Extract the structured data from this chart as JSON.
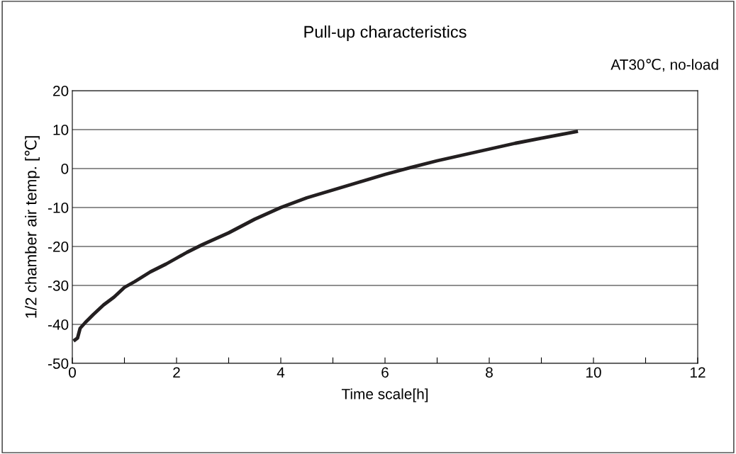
{
  "chart_data": {
    "type": "line",
    "title": "Pull-up characteristics",
    "xlabel": "Time scale[h]",
    "ylabel": "1/2 chamber air temp. [℃]",
    "annotations": [
      "AT30℃, no-load"
    ],
    "x": [
      0.05,
      0.1,
      0.15,
      0.25,
      0.4,
      0.6,
      0.8,
      1.0,
      1.2,
      1.5,
      1.8,
      2.0,
      2.2,
      2.5,
      3.0,
      3.5,
      4.0,
      4.5,
      5.0,
      5.5,
      6.0,
      6.5,
      7.0,
      7.5,
      8.0,
      8.5,
      9.0,
      9.67
    ],
    "series": [
      {
        "color": "#231f20",
        "values": [
          -44,
          -43.5,
          -41,
          -39.5,
          -37.5,
          -35,
          -33,
          -30.5,
          -29,
          -26.5,
          -24.5,
          -23,
          -21.5,
          -19.5,
          -16.5,
          -13,
          -10,
          -7.5,
          -5.5,
          -3.5,
          -1.5,
          0.3,
          2,
          3.5,
          5,
          6.5,
          7.8,
          9.5
        ]
      }
    ],
    "xlim": [
      0,
      12
    ],
    "xticks": [
      0,
      {
        "value": 1,
        "label": null
      },
      2,
      {
        "value": 3,
        "label": null
      },
      4,
      {
        "value": 5,
        "label": null
      },
      6,
      {
        "value": 7,
        "label": null
      },
      8,
      {
        "value": 9,
        "label": null
      },
      10,
      {
        "value": 11,
        "label": null
      },
      12
    ],
    "ylim": [
      -50,
      20
    ],
    "yticks": [
      -50,
      -40,
      -30,
      -20,
      -10,
      0,
      10,
      20
    ],
    "grid": "y",
    "marker": "none",
    "line_style": "solid"
  }
}
